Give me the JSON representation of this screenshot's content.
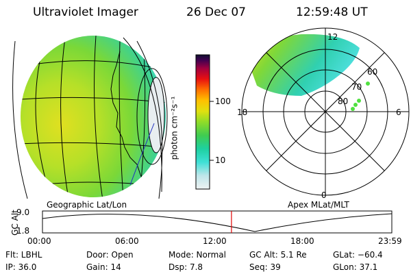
{
  "header": {
    "instrument": "Ultraviolet Imager",
    "date": "26 Dec 07",
    "time": "12:59:48 UT"
  },
  "colorbar": {
    "unit_label": "photon cm⁻²s⁻¹",
    "ticks": [
      "100",
      "10"
    ],
    "colors": [
      "#e8eef0",
      "#bfe6ea",
      "#3fe0d6",
      "#1ed0a0",
      "#30c860",
      "#70d830",
      "#b0e020",
      "#e0e010",
      "#ffd000",
      "#ff9000",
      "#ff3000",
      "#d00020",
      "#800040",
      "#400050",
      "#101030"
    ]
  },
  "left_panel": {
    "caption": "Geographic Lat/Lon"
  },
  "right_panel": {
    "caption": "Apex MLat/MLT",
    "mlt_labels": [
      "12",
      "18",
      "6",
      "0"
    ],
    "mlat_labels": [
      "60",
      "70",
      "80"
    ]
  },
  "altitude_plot": {
    "ylabel": "GC Alt",
    "yticks": [
      "9.0",
      "1.8"
    ],
    "xticks": [
      "00:00",
      "06:00",
      "12:00",
      "18:00",
      "23:59"
    ],
    "current_time_fraction": 0.541
  },
  "status": {
    "flt": "Flt: LBHL",
    "ip": "IP: 36.0",
    "door": "Door: Open",
    "gain": "Gain: 14",
    "mode": "Mode: Normal",
    "dsp": "Dsp:    7.8",
    "gcalt": "GC Alt: 5.1 Re",
    "seq": "Seq: 39",
    "glat": "GLat: −60.4",
    "glon": "GLon:  37.1"
  }
}
